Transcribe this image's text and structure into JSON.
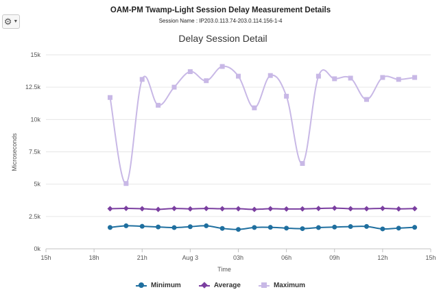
{
  "header": {
    "title": "OAM-PM Twamp-Light Session Delay Measurement Details",
    "session_name": "Session Name : IP203.0.113.74-203.0.114.156-1-4"
  },
  "toolbar": {
    "settings_icon": "gear-icon",
    "dropdown_icon": "chevron-down-icon"
  },
  "chart_data": {
    "type": "line",
    "title": "Delay Session Detail",
    "xlabel": "Time",
    "ylabel": "Microseconds",
    "ylim": [
      0,
      15000
    ],
    "yticks": [
      0,
      2500,
      5000,
      7500,
      10000,
      12500,
      15000
    ],
    "ytick_labels": [
      "0k",
      "2.5k",
      "5k",
      "7.5k",
      "10k",
      "12.5k",
      "15k"
    ],
    "xlim": [
      15,
      39
    ],
    "xticks": [
      15,
      18,
      21,
      24,
      27,
      30,
      33,
      36,
      39
    ],
    "xtick_labels": [
      "15h",
      "18h",
      "21h",
      "Aug 3",
      "03h",
      "06h",
      "09h",
      "12h",
      "15h"
    ],
    "x": [
      19,
      20,
      21,
      22,
      23,
      24,
      25,
      26,
      27,
      28,
      29,
      30,
      31,
      32,
      33,
      34,
      35,
      36,
      37,
      38
    ],
    "grid": "horizontal",
    "legend": "bottom-center",
    "series": [
      {
        "name": "Minimum",
        "color": "#1f6f9f",
        "marker": "circle",
        "values": [
          1650,
          1780,
          1740,
          1690,
          1640,
          1710,
          1780,
          1580,
          1500,
          1650,
          1660,
          1600,
          1560,
          1640,
          1680,
          1720,
          1730,
          1540,
          1600,
          1660
        ]
      },
      {
        "name": "Average",
        "color": "#7b3fa0",
        "marker": "diamond",
        "values": [
          3100,
          3130,
          3100,
          3050,
          3120,
          3090,
          3120,
          3100,
          3100,
          3050,
          3100,
          3080,
          3090,
          3120,
          3150,
          3100,
          3100,
          3130,
          3090,
          3110
        ]
      },
      {
        "name": "Maximum",
        "color": "#c8b8e6",
        "marker": "square",
        "values": [
          11700,
          5050,
          13100,
          11100,
          12500,
          13700,
          13000,
          14100,
          13350,
          10900,
          13400,
          11800,
          6600,
          13350,
          13150,
          13200,
          11550,
          13250,
          13100,
          13250
        ]
      }
    ]
  }
}
